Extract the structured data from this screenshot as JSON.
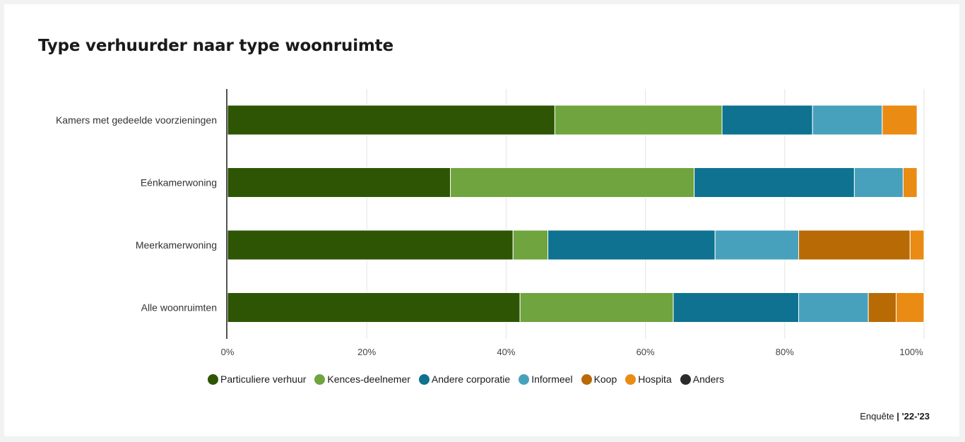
{
  "title": "Type verhuurder naar type woonruimte",
  "source": {
    "label": "Enquête",
    "separator": "|",
    "period": "'22-'23"
  },
  "chart_data": {
    "type": "bar",
    "orientation": "horizontal",
    "stacked": true,
    "title": "Type verhuurder naar type woonruimte",
    "xlim": [
      0,
      100
    ],
    "x_ticks": [
      "0%",
      "20%",
      "40%",
      "60%",
      "80%",
      "100%"
    ],
    "grid": true,
    "legend_position": "bottom",
    "categories": [
      "Kamers met gedeelde voorzieningen",
      "Eénkamerwoning",
      "Meerkamerwoning",
      "Alle woonruimten"
    ],
    "series": [
      {
        "name": "Particuliere verhuur",
        "color": "#2e5504",
        "values": [
          47,
          32,
          41,
          42
        ]
      },
      {
        "name": "Kences-deelnemer",
        "color": "#6fa43e",
        "values": [
          24,
          35,
          5,
          22
        ]
      },
      {
        "name": "Andere corporatie",
        "color": "#0e7290",
        "values": [
          13,
          23,
          24,
          18
        ]
      },
      {
        "name": "Informeel",
        "color": "#48a1bc",
        "values": [
          10,
          7,
          12,
          10
        ]
      },
      {
        "name": "Koop",
        "color": "#b86a04",
        "values": [
          0,
          0,
          16,
          4
        ]
      },
      {
        "name": "Hospita",
        "color": "#ea8b13",
        "values": [
          5,
          2,
          2,
          4
        ]
      },
      {
        "name": "Anders",
        "color": "#2b2b2b",
        "values": [
          0,
          0,
          0,
          0
        ]
      }
    ]
  }
}
